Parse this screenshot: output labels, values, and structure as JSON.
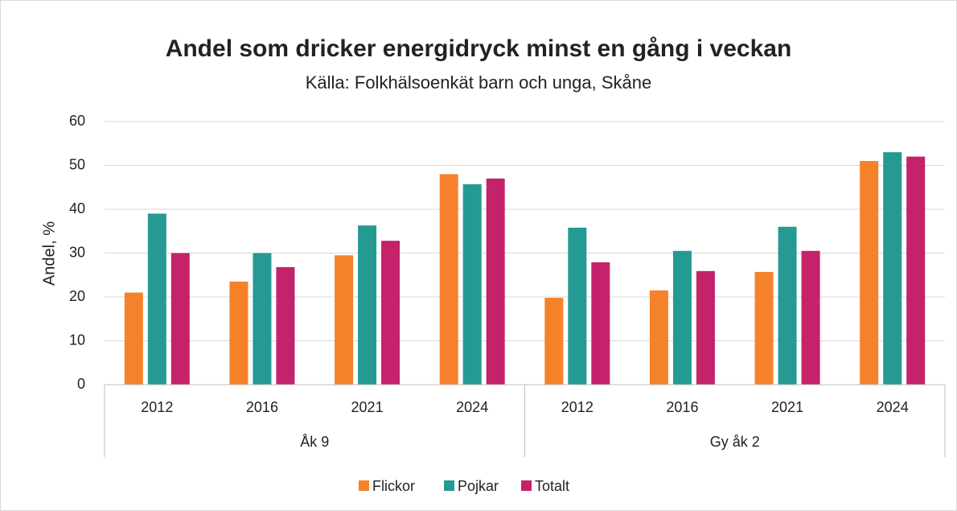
{
  "chart_data": {
    "type": "bar",
    "title": "Andel som dricker energidryck minst en gång i veckan",
    "subtitle": "Källa: Folkhälsoenkät barn och unga, Skåne",
    "ylabel": "Andel, %",
    "groups": [
      "Åk 9",
      "Gy åk 2"
    ],
    "categories": [
      "2012",
      "2016",
      "2021",
      "2024",
      "2012",
      "2016",
      "2021",
      "2024"
    ],
    "series": [
      {
        "name": "Flickor",
        "color": "#f5822a",
        "values": [
          21,
          23.5,
          29.5,
          48,
          19.8,
          21.5,
          25.7,
          51
        ]
      },
      {
        "name": "Pojkar",
        "color": "#259a93",
        "values": [
          39,
          30,
          36.3,
          45.7,
          35.8,
          30.5,
          36,
          53
        ]
      },
      {
        "name": "Totalt",
        "color": "#c4226a",
        "values": [
          30,
          26.8,
          32.8,
          47,
          27.9,
          25.9,
          30.5,
          52
        ]
      }
    ],
    "ylim": [
      0,
      60
    ],
    "yticks": [
      0,
      10,
      20,
      30,
      40,
      50,
      60
    ],
    "grid": true,
    "legend": "bottom"
  }
}
